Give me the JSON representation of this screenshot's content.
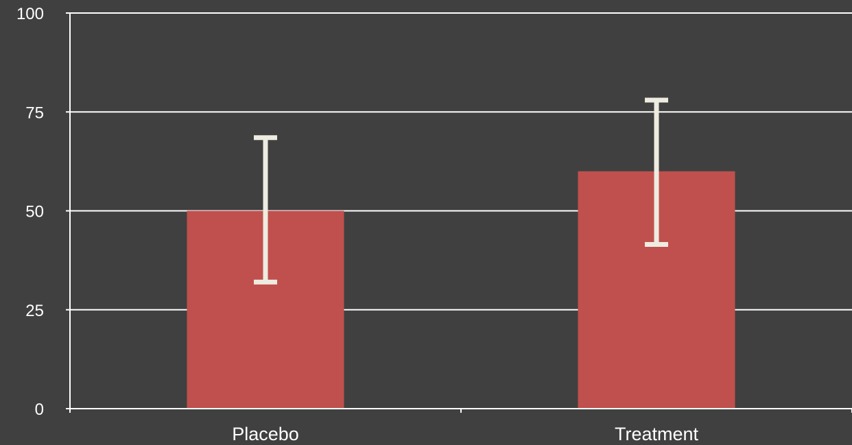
{
  "chart_data": {
    "type": "bar",
    "categories": [
      "Placebo",
      "Treatment"
    ],
    "values": [
      50,
      60
    ],
    "error_bars": {
      "upper": [
        68.5,
        78
      ],
      "lower": [
        32,
        41.5
      ]
    },
    "ylim": [
      0,
      100
    ],
    "yticks": [
      "0",
      "25",
      "50",
      "75",
      "100"
    ],
    "title": "",
    "xlabel": "",
    "ylabel": "",
    "grid": true,
    "colors": {
      "background": "#404040",
      "bar": "#c0504d",
      "error_bar": "#eeece1",
      "axis": "#ffffff",
      "text": "#ffffff"
    }
  }
}
